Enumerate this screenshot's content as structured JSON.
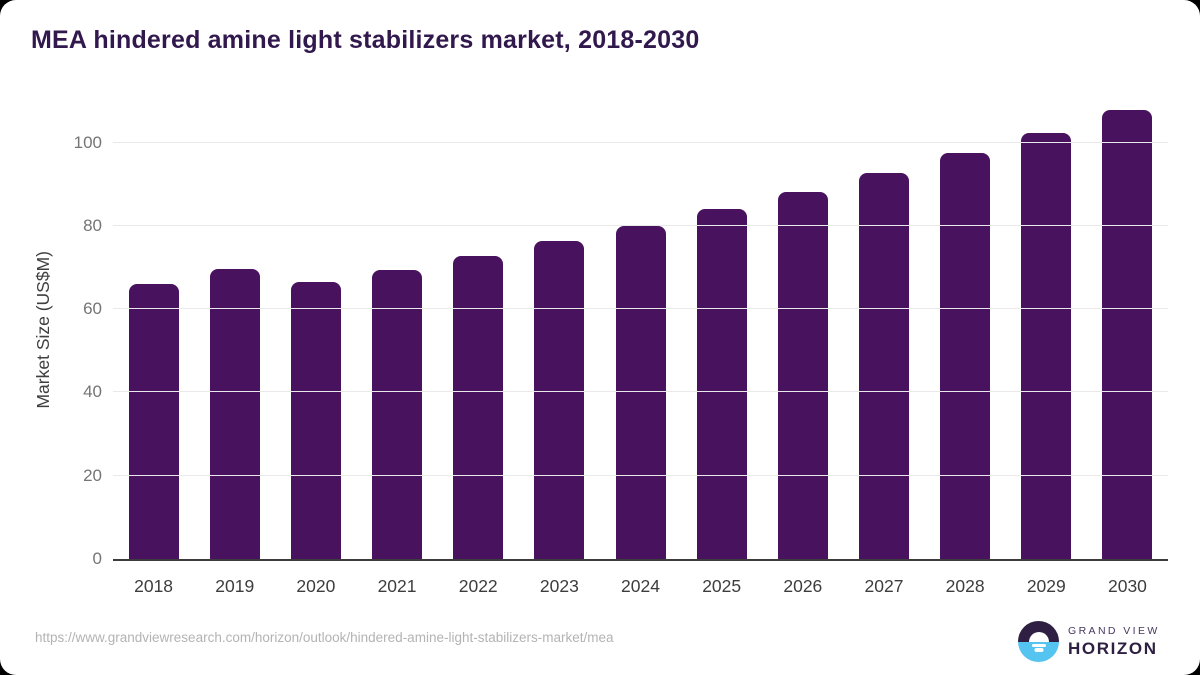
{
  "title": "MEA hindered amine light stabilizers market, 2018-2030",
  "chart_data": {
    "type": "bar",
    "categories": [
      "2018",
      "2019",
      "2020",
      "2021",
      "2022",
      "2023",
      "2024",
      "2025",
      "2026",
      "2027",
      "2028",
      "2029",
      "2030"
    ],
    "values": [
      66.1,
      69.7,
      66.5,
      69.4,
      72.8,
      76.4,
      80.0,
      84.1,
      88.1,
      92.7,
      97.4,
      102.3,
      107.9
    ],
    "title": "MEA hindered amine light stabilizers market, 2018-2030",
    "xlabel": "",
    "ylabel": "Market Size (US$M)",
    "yticks": [
      0,
      20,
      40,
      60,
      80,
      100
    ],
    "ylim": [
      0,
      110
    ],
    "grid": true,
    "legend": "none",
    "bar_color": "#49125f"
  },
  "footer": {
    "url": "https://www.grandviewresearch.com/horizon/outlook/hindered-amine-light-stabilizers-market/mea",
    "brand_top": "GRAND VIEW",
    "brand_bottom": "HORIZON"
  },
  "colors": {
    "bar": "#49125f",
    "title_text": "#31184d",
    "axis_line": "#3c3c3c",
    "gridline": "#e9e9e9",
    "y_tick_text": "#757575",
    "x_tick_text": "#3d3d3d",
    "url_text": "#b3b3b3",
    "logo_purple": "#2f2043",
    "logo_blue": "#56c4f0"
  }
}
